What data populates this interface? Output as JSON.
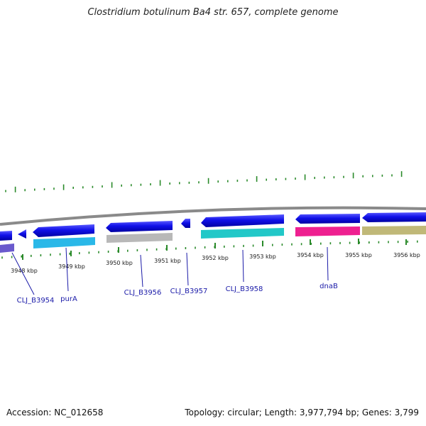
{
  "title": "Clostridium botulinum Ba4 str. 657, complete genome",
  "footer": {
    "accession": "Accession: NC_012658",
    "summary": "Topology: circular; Length: 3,977,794 bp; Genes: 3,799"
  },
  "colors": {
    "backbone": "#8a8a8a",
    "forward_gene": "#1010e8",
    "tick": "#2a8a2a",
    "label_text": "#1a1a1a",
    "gene_label": "#1a1aa8",
    "leader": "#1a1aa8"
  },
  "kbp_labels": [
    "3948 kbp",
    "3949 kbp",
    "3950 kbp",
    "3951 kbp",
    "3952 kbp",
    "3953 kbp",
    "3954 kbp",
    "3955 kbp",
    "3956 kbp"
  ],
  "gene_labels": [
    "CLJ_B3954",
    "purA",
    "CLJ_B3956",
    "CLJ_B3957",
    "CLJ_B3958",
    "dnaB"
  ],
  "reverse_gene_colors": [
    "#6a5acd",
    "#2ab8e8",
    "#b8b8b8",
    "#22c8c8",
    "#ee2090",
    "#c0b878"
  ]
}
